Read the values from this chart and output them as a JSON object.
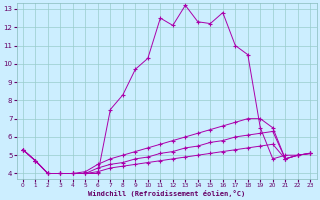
{
  "bg_color": "#cceeff",
  "line_color": "#aa00aa",
  "grid_color": "#99cccc",
  "xlabel": "Windchill (Refroidissement éolien,°C)",
  "xlim": [
    -0.5,
    23.5
  ],
  "ylim": [
    3.7,
    13.3
  ],
  "xticks": [
    0,
    1,
    2,
    3,
    4,
    5,
    6,
    7,
    8,
    9,
    10,
    11,
    12,
    13,
    14,
    15,
    16,
    17,
    18,
    19,
    20,
    21,
    22,
    23
  ],
  "yticks": [
    4,
    5,
    6,
    7,
    8,
    9,
    10,
    11,
    12,
    13
  ],
  "series": [
    {
      "x": [
        0,
        1,
        2,
        3,
        4,
        5,
        6,
        7,
        8,
        9,
        10,
        11,
        12,
        13,
        14,
        15,
        16,
        17,
        18,
        19,
        20,
        21,
        22,
        23
      ],
      "y": [
        5.3,
        4.7,
        4.0,
        4.0,
        4.0,
        4.0,
        4.0,
        7.5,
        8.3,
        9.7,
        10.3,
        12.5,
        12.1,
        13.2,
        12.3,
        12.2,
        12.8,
        11.0,
        10.5,
        6.5,
        4.8,
        5.0,
        5.0,
        5.1
      ]
    },
    {
      "x": [
        0,
        1,
        2,
        3,
        4,
        5,
        6,
        7,
        8,
        9,
        10,
        11,
        12,
        13,
        14,
        15,
        16,
        17,
        18,
        19,
        20,
        21,
        22,
        23
      ],
      "y": [
        5.3,
        4.7,
        4.0,
        4.0,
        4.0,
        4.1,
        4.5,
        4.8,
        5.0,
        5.2,
        5.4,
        5.6,
        5.8,
        6.0,
        6.2,
        6.4,
        6.6,
        6.8,
        7.0,
        7.0,
        6.5,
        4.8,
        5.0,
        5.1
      ]
    },
    {
      "x": [
        0,
        1,
        2,
        3,
        4,
        5,
        6,
        7,
        8,
        9,
        10,
        11,
        12,
        13,
        14,
        15,
        16,
        17,
        18,
        19,
        20,
        21,
        22,
        23
      ],
      "y": [
        5.3,
        4.7,
        4.0,
        4.0,
        4.0,
        4.0,
        4.3,
        4.5,
        4.6,
        4.8,
        4.9,
        5.1,
        5.2,
        5.4,
        5.5,
        5.7,
        5.8,
        6.0,
        6.1,
        6.2,
        6.3,
        4.8,
        5.0,
        5.1
      ]
    },
    {
      "x": [
        0,
        1,
        2,
        3,
        4,
        5,
        6,
        7,
        8,
        9,
        10,
        11,
        12,
        13,
        14,
        15,
        16,
        17,
        18,
        19,
        20,
        21,
        22,
        23
      ],
      "y": [
        5.3,
        4.7,
        4.0,
        4.0,
        4.0,
        4.0,
        4.1,
        4.3,
        4.4,
        4.5,
        4.6,
        4.7,
        4.8,
        4.9,
        5.0,
        5.1,
        5.2,
        5.3,
        5.4,
        5.5,
        5.6,
        4.8,
        5.0,
        5.1
      ]
    }
  ]
}
